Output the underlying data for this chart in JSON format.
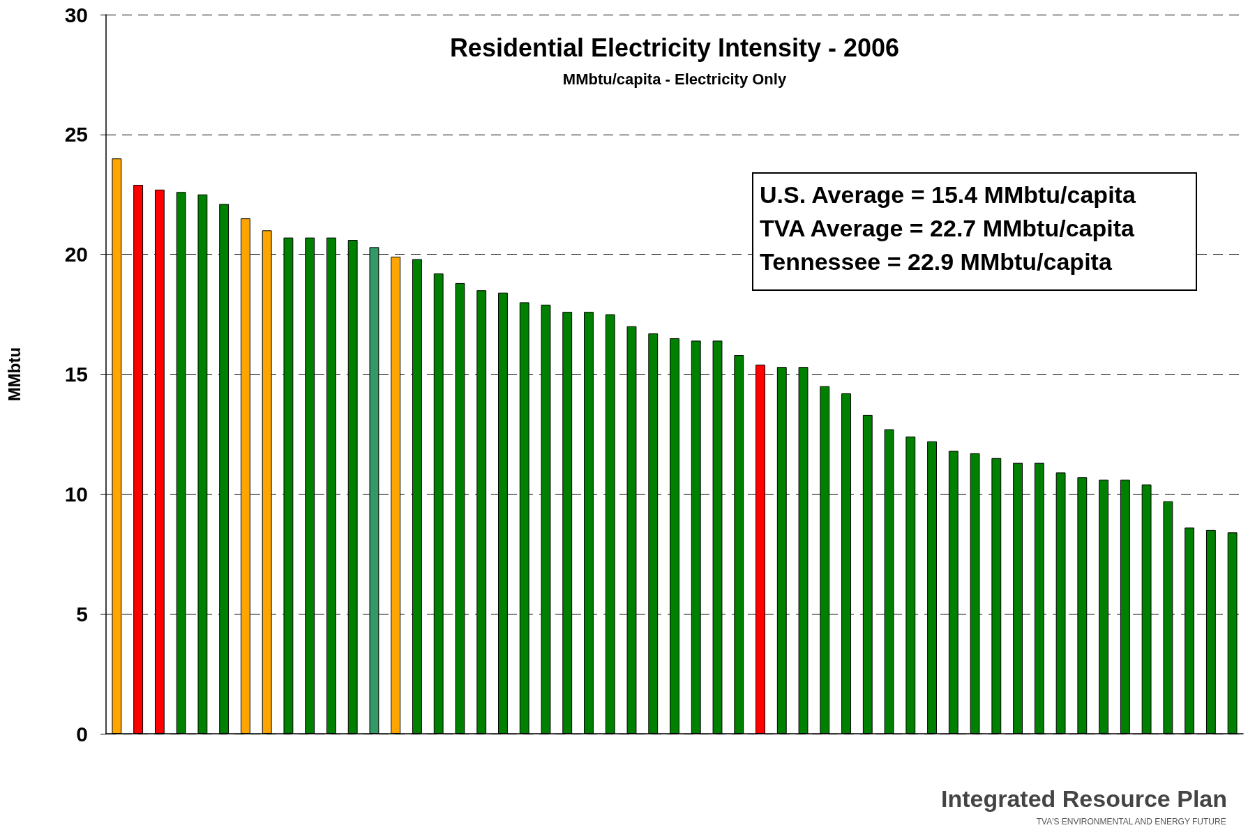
{
  "chart_data": {
    "type": "bar",
    "title": "Residential Electricity Intensity - 2006",
    "subtitle": "MMbtu/capita - Electricity Only",
    "ylabel": "MMbtu",
    "annotations": [
      "U.S. Average = 15.4 MMbtu/capita",
      "TVA Average = 22.7 MMbtu/capita",
      "Tennessee = 22.9 MMbtu/capita",
      "Integrated Resource Plan",
      "TVA'S ENVIRONMENTAL AND ENERGY FUTURE"
    ],
    "categories": [
      null,
      null,
      null,
      null,
      null,
      null,
      null,
      null,
      null,
      null,
      null,
      null,
      null,
      null,
      null,
      null,
      null,
      null,
      null,
      null,
      null,
      null,
      null,
      null,
      null,
      null,
      null,
      null,
      null,
      null,
      null,
      null,
      null,
      null,
      null,
      null,
      null,
      null,
      null,
      null,
      null,
      null,
      null,
      null,
      null,
      null,
      null,
      null,
      null,
      null,
      null,
      null,
      null
    ],
    "values": [
      24.0,
      22.9,
      22.7,
      22.6,
      22.5,
      22.1,
      21.5,
      21.0,
      20.7,
      20.7,
      20.7,
      20.6,
      20.3,
      19.9,
      19.8,
      19.2,
      18.8,
      18.5,
      18.4,
      18.0,
      17.9,
      17.6,
      17.6,
      17.5,
      17.0,
      16.7,
      16.5,
      16.4,
      16.4,
      15.8,
      15.4,
      15.3,
      15.3,
      14.5,
      14.2,
      13.3,
      12.7,
      12.4,
      12.2,
      11.8,
      11.7,
      11.5,
      11.3,
      11.3,
      10.9,
      10.7,
      10.6,
      10.6,
      10.4,
      9.7,
      8.6,
      8.5,
      8.4
    ],
    "colors": [
      "#ffa500",
      "#ff0000",
      "#ff0000",
      "#008000",
      "#008000",
      "#008000",
      "#ffa500",
      "#ffa500",
      "#008000",
      "#008000",
      "#008000",
      "#008000",
      "#339966",
      "#ffa500",
      "#008000",
      "#008000",
      "#008000",
      "#008000",
      "#008000",
      "#008000",
      "#008000",
      "#008000",
      "#008000",
      "#008000",
      "#008000",
      "#008000",
      "#008000",
      "#008000",
      "#008000",
      "#008000",
      "#ff0000",
      "#008000",
      "#008000",
      "#008000",
      "#008000",
      "#008000",
      "#008000",
      "#008000",
      "#008000",
      "#008000",
      "#008000",
      "#008000",
      "#008000",
      "#008000",
      "#008000",
      "#008000",
      "#008000",
      "#008000",
      "#008000",
      "#008000",
      "#008000",
      "#008000",
      "#008000"
    ],
    "ylim": [
      0,
      30
    ],
    "yticks": [
      0,
      5,
      10,
      15,
      20,
      25,
      30
    ],
    "grid": "y"
  }
}
